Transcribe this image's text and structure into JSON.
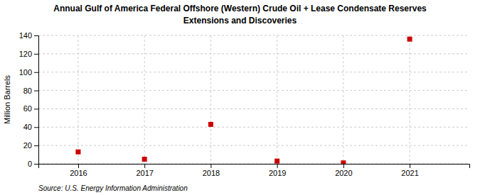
{
  "chart_data": {
    "type": "scatter",
    "title": "Annual Gulf of America Federal Offshore (Western) Crude Oil + Lease Condensate Reserves",
    "subtitle": "Extensions and Discoveries",
    "y_label": "Million Barrels",
    "annotations": [
      "Source: U.S. Energy Information Administration"
    ],
    "x": [
      2016,
      2017,
      2018,
      2019,
      2020,
      2021
    ],
    "values": [
      13,
      5,
      43,
      3,
      1,
      136
    ],
    "xlim": [
      2015.4,
      2021.9
    ],
    "xticks": [
      2016,
      2017,
      2018,
      2019,
      2020,
      2021
    ],
    "ylim": [
      0,
      140
    ],
    "yticks": [
      0,
      20,
      40,
      60,
      80,
      100,
      120,
      140
    ],
    "color": "#cc0000",
    "marker": "square",
    "grid": true
  }
}
